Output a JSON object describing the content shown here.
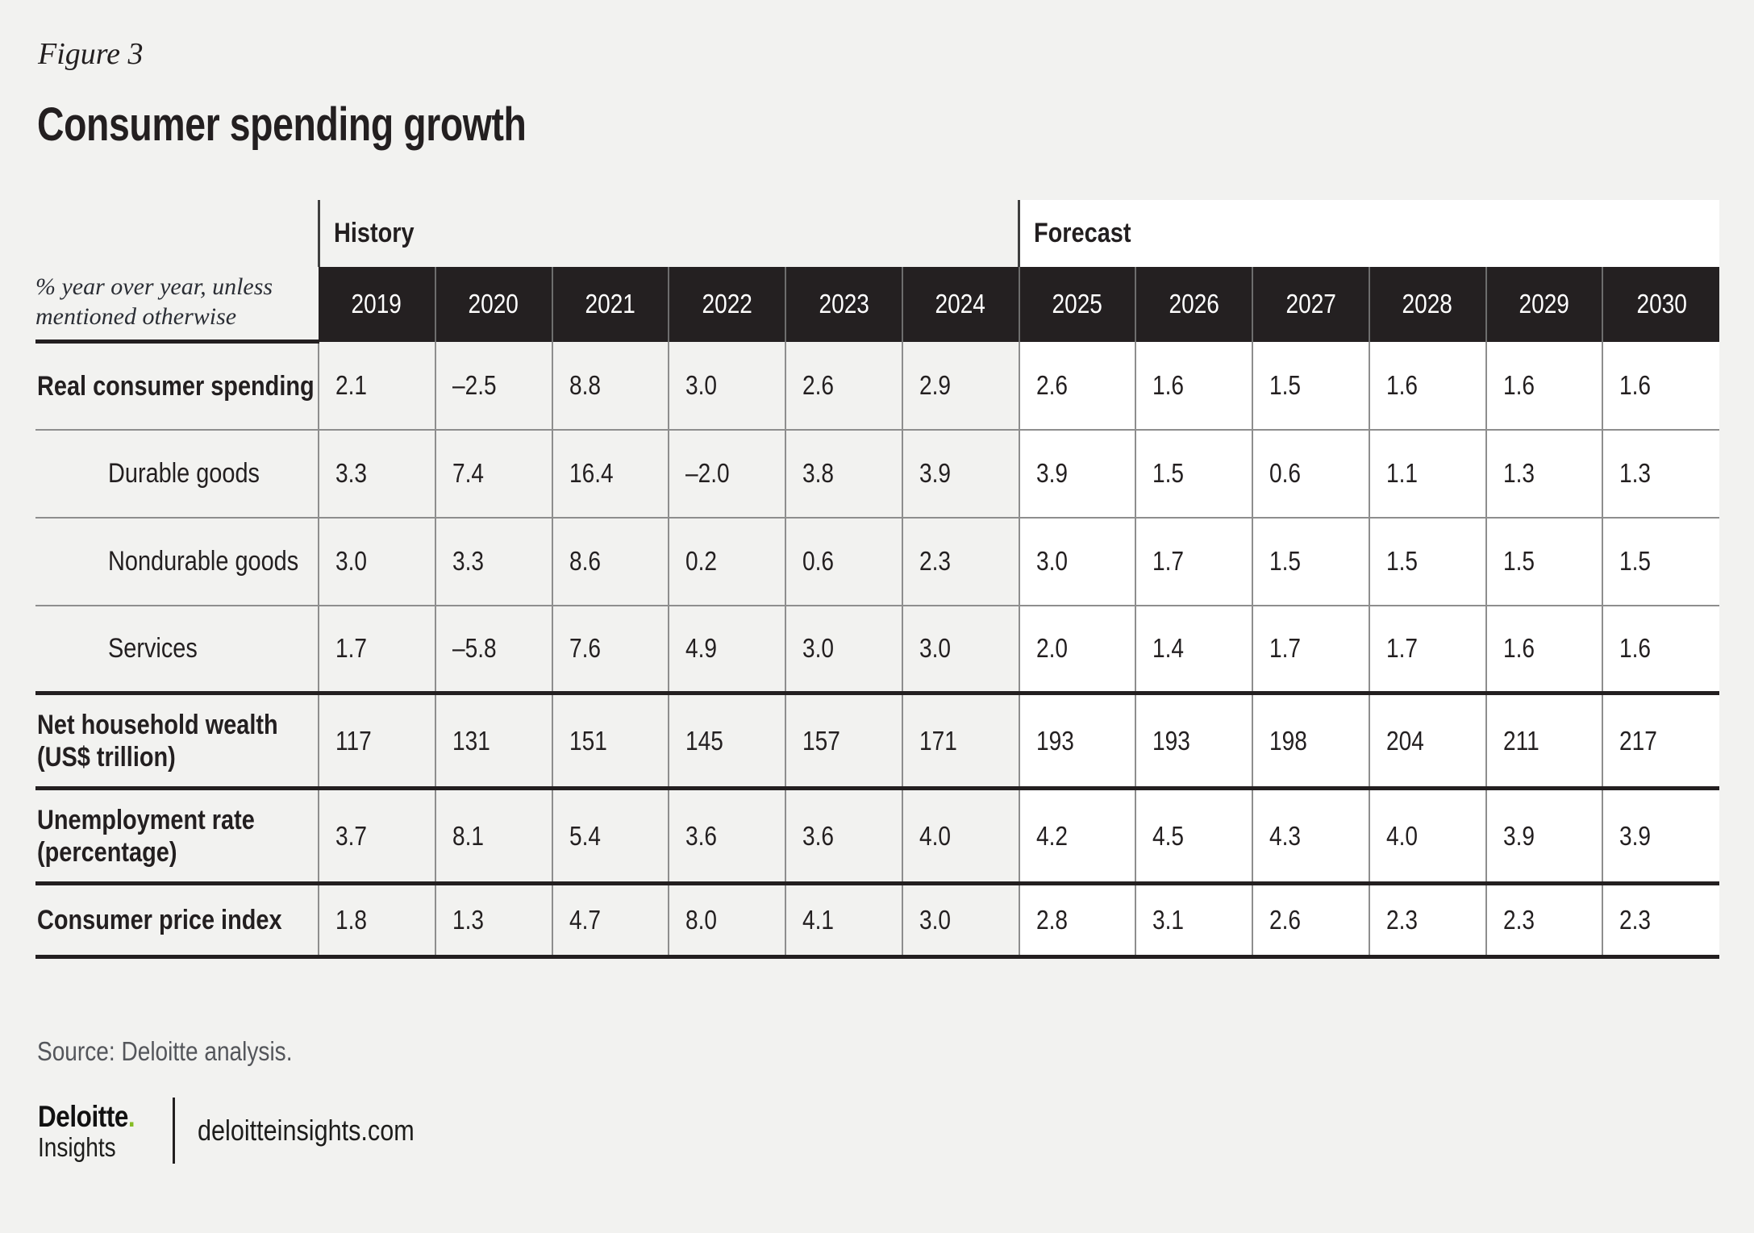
{
  "figure_label": "Figure 3",
  "title": "Consumer spending growth",
  "table": {
    "unit_note": "% year over year, unless mentioned otherwise",
    "groups": [
      {
        "label": "History",
        "years": [
          "2019",
          "2020",
          "2021",
          "2022",
          "2023",
          "2024"
        ]
      },
      {
        "label": "Forecast",
        "years": [
          "2025",
          "2026",
          "2027",
          "2028",
          "2029",
          "2030"
        ]
      }
    ],
    "rows": [
      {
        "label": "Real consumer spending",
        "bold": true,
        "indent": false,
        "section_end": false,
        "history": [
          "2.1",
          "–2.5",
          "8.8",
          "3.0",
          "2.6",
          "2.9"
        ],
        "forecast": [
          "2.6",
          "1.6",
          "1.5",
          "1.6",
          "1.6",
          "1.6"
        ]
      },
      {
        "label": "Durable goods",
        "bold": false,
        "indent": true,
        "section_end": false,
        "history": [
          "3.3",
          "7.4",
          "16.4",
          "–2.0",
          "3.8",
          "3.9"
        ],
        "forecast": [
          "3.9",
          "1.5",
          "0.6",
          "1.1",
          "1.3",
          "1.3"
        ]
      },
      {
        "label": "Nondurable goods",
        "bold": false,
        "indent": true,
        "section_end": false,
        "history": [
          "3.0",
          "3.3",
          "8.6",
          "0.2",
          "0.6",
          "2.3"
        ],
        "forecast": [
          "3.0",
          "1.7",
          "1.5",
          "1.5",
          "1.5",
          "1.5"
        ]
      },
      {
        "label": "Services",
        "bold": false,
        "indent": true,
        "section_end": true,
        "history": [
          "1.7",
          "–5.8",
          "7.6",
          "4.9",
          "3.0",
          "3.0"
        ],
        "forecast": [
          "2.0",
          "1.4",
          "1.7",
          "1.7",
          "1.6",
          "1.6"
        ]
      },
      {
        "label": "Net household wealth (US$ trillion)",
        "bold": true,
        "indent": false,
        "section_end": true,
        "history": [
          "117",
          "131",
          "151",
          "145",
          "157",
          "171"
        ],
        "forecast": [
          "193",
          "193",
          "198",
          "204",
          "211",
          "217"
        ]
      },
      {
        "label": "Unemployment rate (percentage)",
        "bold": true,
        "indent": false,
        "section_end": true,
        "history": [
          "3.7",
          "8.1",
          "5.4",
          "3.6",
          "3.6",
          "4.0"
        ],
        "forecast": [
          "4.2",
          "4.5",
          "4.3",
          "4.0",
          "3.9",
          "3.9"
        ]
      },
      {
        "label": "Consumer price index",
        "bold": true,
        "indent": false,
        "section_end": true,
        "history": [
          "1.8",
          "1.3",
          "4.7",
          "8.0",
          "4.1",
          "3.0"
        ],
        "forecast": [
          "2.8",
          "3.1",
          "2.6",
          "2.3",
          "2.3",
          "2.3"
        ]
      }
    ]
  },
  "source": "Source: Deloitte analysis.",
  "footer": {
    "brand": "Deloitte",
    "brand_dot": ".",
    "brand_sub": "Insights",
    "site": "deloitteinsights.com"
  },
  "colors": {
    "page_bg": "#f2f2f0",
    "band_bg": "#242021",
    "band_text": "#ffffff",
    "forecast_bg": "#ffffff",
    "thin_border": "#8e8e8e",
    "thick_border": "#231f20",
    "header_divider": "#3f3f3f",
    "source_text": "#54565b",
    "brand_green": "#86bc25",
    "text": "#231f20"
  },
  "chart_data": {
    "type": "table",
    "title": "Consumer spending growth",
    "unit_note": "% year over year, unless mentioned otherwise",
    "column_groups": [
      {
        "label": "History",
        "years": [
          2019,
          2020,
          2021,
          2022,
          2023,
          2024
        ]
      },
      {
        "label": "Forecast",
        "years": [
          2025,
          2026,
          2027,
          2028,
          2029,
          2030
        ]
      }
    ],
    "rows": [
      {
        "label": "Real consumer spending",
        "values": [
          2.1,
          -2.5,
          8.8,
          3.0,
          2.6,
          2.9,
          2.6,
          1.6,
          1.5,
          1.6,
          1.6,
          1.6
        ]
      },
      {
        "label": "Durable goods",
        "values": [
          3.3,
          7.4,
          16.4,
          -2.0,
          3.8,
          3.9,
          3.9,
          1.5,
          0.6,
          1.1,
          1.3,
          1.3
        ]
      },
      {
        "label": "Nondurable goods",
        "values": [
          3.0,
          3.3,
          8.6,
          0.2,
          0.6,
          2.3,
          3.0,
          1.7,
          1.5,
          1.5,
          1.5,
          1.5
        ]
      },
      {
        "label": "Services",
        "values": [
          1.7,
          -5.8,
          7.6,
          4.9,
          3.0,
          3.0,
          2.0,
          1.4,
          1.7,
          1.7,
          1.6,
          1.6
        ]
      },
      {
        "label": "Net household wealth (US$ trillion)",
        "values": [
          117,
          131,
          151,
          145,
          157,
          171,
          193,
          193,
          198,
          204,
          211,
          217
        ]
      },
      {
        "label": "Unemployment rate (percentage)",
        "values": [
          3.7,
          8.1,
          5.4,
          3.6,
          3.6,
          4.0,
          4.2,
          4.5,
          4.3,
          4.0,
          3.9,
          3.9
        ]
      },
      {
        "label": "Consumer price index",
        "values": [
          1.8,
          1.3,
          4.7,
          8.0,
          4.1,
          3.0,
          2.8,
          3.1,
          2.6,
          2.3,
          2.3,
          2.3
        ]
      }
    ],
    "source": "Source: Deloitte analysis."
  }
}
